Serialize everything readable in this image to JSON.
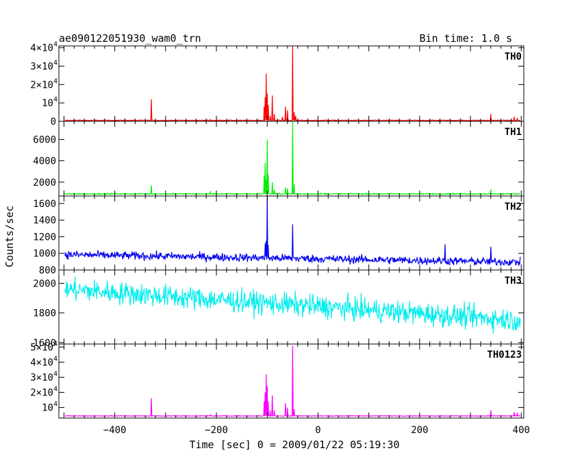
{
  "header": {
    "title": "ae090122051930_wam0_trn",
    "bin_time": "Bin time: 1.0 s"
  },
  "axes": {
    "xlabel": "Time [sec] 0 = 2009/01/22 05:19:30",
    "ylabel": "Counts/sec",
    "xlim": [
      -510,
      405
    ],
    "xticks": [
      {
        "value": -400,
        "label": "−400"
      },
      {
        "value": -200,
        "label": "−200"
      },
      {
        "value": 0,
        "label": "0"
      },
      {
        "value": 200,
        "label": "200"
      },
      {
        "value": 400,
        "label": "400"
      }
    ]
  },
  "chart_data": [
    {
      "type": "line",
      "name": "TH0",
      "label": "TH0",
      "color": "#ff0000",
      "ylim": [
        0,
        41000
      ],
      "yticks": [
        {
          "value": 0,
          "base": "0",
          "exp": ""
        },
        {
          "value": 10000,
          "base": "10",
          "exp": "4"
        },
        {
          "value": 20000,
          "base": "2×10",
          "exp": "4"
        },
        {
          "value": 30000,
          "base": "3×10",
          "exp": "4"
        },
        {
          "value": 40000,
          "base": "4×10",
          "exp": "4"
        }
      ],
      "baseline": 500,
      "noise": 150,
      "trend": 0,
      "spikes": [
        [
          -328,
          12000
        ],
        [
          -212,
          1000
        ],
        [
          -106,
          8000
        ],
        [
          -104,
          13000
        ],
        [
          -102,
          26000
        ],
        [
          -100,
          15000
        ],
        [
          -98,
          9000
        ],
        [
          -94,
          3000
        ],
        [
          -90,
          14000
        ],
        [
          -86,
          4000
        ],
        [
          -70,
          2500
        ],
        [
          -64,
          8000
        ],
        [
          -60,
          6000
        ],
        [
          -50,
          41000
        ],
        [
          -47,
          5000
        ],
        [
          -44,
          3000
        ],
        [
          340,
          4000
        ],
        [
          386,
          2500
        ],
        [
          392,
          1500
        ]
      ]
    },
    {
      "type": "line",
      "name": "TH1",
      "label": "TH1",
      "color": "#00ee00",
      "ylim": [
        700,
        7700
      ],
      "yticks": [
        {
          "value": 2000,
          "base": "2000",
          "exp": ""
        },
        {
          "value": 4000,
          "base": "4000",
          "exp": ""
        },
        {
          "value": 6000,
          "base": "6000",
          "exp": ""
        }
      ],
      "baseline": 900,
      "noise": 40,
      "trend": 0,
      "spikes": [
        [
          -328,
          1700
        ],
        [
          -212,
          1100
        ],
        [
          -106,
          2600
        ],
        [
          -104,
          3800
        ],
        [
          -102,
          2200
        ],
        [
          -100,
          6000
        ],
        [
          -98,
          2700
        ],
        [
          -90,
          2000
        ],
        [
          -86,
          1300
        ],
        [
          -64,
          1500
        ],
        [
          -60,
          1400
        ],
        [
          -50,
          7700
        ],
        [
          -47,
          1800
        ],
        [
          340,
          1300
        ]
      ]
    },
    {
      "type": "line",
      "name": "TH2",
      "label": "TH2",
      "color": "#0000ee",
      "ylim": [
        800,
        1690
      ],
      "yticks": [
        {
          "value": 800,
          "base": "800",
          "exp": ""
        },
        {
          "value": 1000,
          "base": "1000",
          "exp": ""
        },
        {
          "value": 1200,
          "base": "1200",
          "exp": ""
        },
        {
          "value": 1400,
          "base": "1400",
          "exp": ""
        },
        {
          "value": 1600,
          "base": "1600",
          "exp": ""
        }
      ],
      "baseline": 985,
      "noise": 35,
      "trend": -90,
      "spikes": [
        [
          -104,
          1120
        ],
        [
          -102,
          1150
        ],
        [
          -100,
          1690
        ],
        [
          -98,
          1100
        ],
        [
          -50,
          1350
        ],
        [
          250,
          1110
        ],
        [
          340,
          1080
        ]
      ]
    },
    {
      "type": "line",
      "name": "TH3",
      "label": "TH3",
      "color": "#00eeee",
      "ylim": [
        1590,
        2090
      ],
      "yticks": [
        {
          "value": 1600,
          "base": "1600",
          "exp": ""
        },
        {
          "value": 1800,
          "base": "1800",
          "exp": ""
        },
        {
          "value": 2000,
          "base": "2000",
          "exp": ""
        }
      ],
      "baseline": 1960,
      "noise": 55,
      "trend": -210,
      "spikes": []
    },
    {
      "type": "line",
      "name": "TH0123",
      "label": "TH0123",
      "color": "#ff00ff",
      "ylim": [
        3000,
        52000
      ],
      "yticks": [
        {
          "value": 10000,
          "base": "10",
          "exp": "4"
        },
        {
          "value": 20000,
          "base": "2×10",
          "exp": "4"
        },
        {
          "value": 30000,
          "base": "3×10",
          "exp": "4"
        },
        {
          "value": 40000,
          "base": "4×10",
          "exp": "4"
        },
        {
          "value": 50000,
          "base": "5×10",
          "exp": "4"
        }
      ],
      "baseline": 4400,
      "noise": 150,
      "trend": 0,
      "spikes": [
        [
          -328,
          16000
        ],
        [
          -212,
          5200
        ],
        [
          -106,
          14000
        ],
        [
          -104,
          20000
        ],
        [
          -102,
          32000
        ],
        [
          -100,
          24000
        ],
        [
          -98,
          14000
        ],
        [
          -94,
          8000
        ],
        [
          -90,
          18000
        ],
        [
          -86,
          8000
        ],
        [
          -64,
          13000
        ],
        [
          -60,
          10000
        ],
        [
          -50,
          51000
        ],
        [
          -47,
          9000
        ],
        [
          340,
          8000
        ],
        [
          386,
          7000
        ],
        [
          392,
          6500
        ]
      ]
    }
  ]
}
